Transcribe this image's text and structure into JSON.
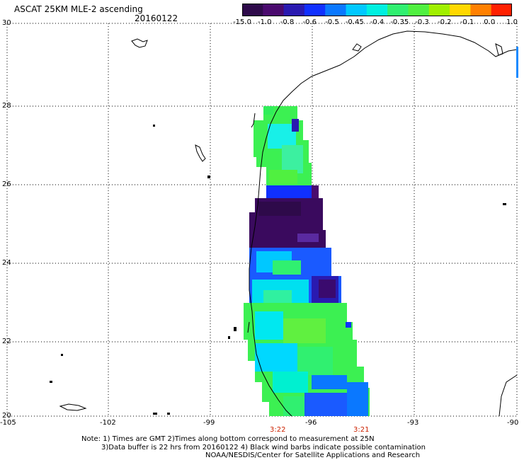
{
  "header": {
    "title": "ASCAT 25KM MLE-2 ascending",
    "date": "20160122"
  },
  "colorbar": {
    "labels": [
      "-15.0",
      "-1.0",
      "-0.8",
      "-0.6",
      "-0.5",
      "-0.45",
      "-0.4",
      "-0.35",
      "-0.3",
      "-0.2",
      "-0.1",
      "0.0",
      "1.0"
    ],
    "colors": [
      "#2e0a4a",
      "#4a0a6e",
      "#2a1ab0",
      "#1030ff",
      "#0a78ff",
      "#00c8ff",
      "#00f0e0",
      "#30f070",
      "#50f040",
      "#a0f000",
      "#ffd800",
      "#ff8000",
      "#ff2000"
    ]
  },
  "axes": {
    "x_labels": [
      "-105",
      "-102",
      "-99",
      "-96",
      "-93",
      "-90"
    ],
    "y_labels": [
      "30",
      "28",
      "26",
      "24",
      "22",
      "20"
    ]
  },
  "pass_times": [
    "3:22",
    "3:21"
  ],
  "notes": {
    "line1": "Note: 1) Times are GMT 2)Times along bottom correspond to measurement at 25N",
    "line2": "3)Data buffer is 22 hrs from 20160122 4) Black wind barbs indicate possible contamination",
    "line3": "NOAA/NESDIS/Center for Satellite Applications and Research"
  }
}
